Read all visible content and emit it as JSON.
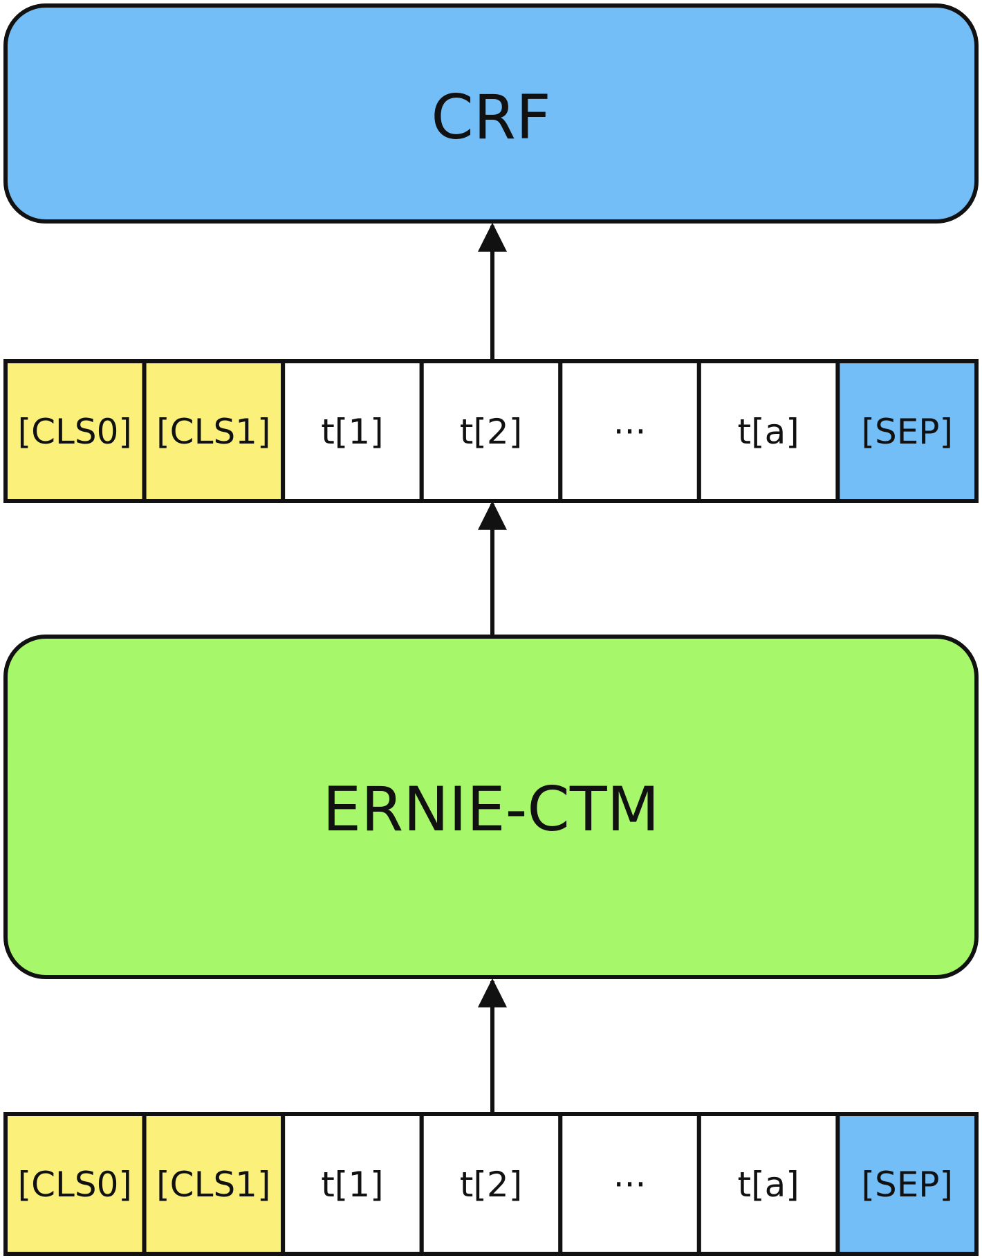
{
  "crf_block": {
    "label": "CRF",
    "color": "#74BEF8"
  },
  "model_block": {
    "label": "ERNIE-CTM",
    "color": "#A7F76B"
  },
  "output_sequence": [
    {
      "label": "[CLS0]",
      "color": "#FAF07A"
    },
    {
      "label": "[CLS1]",
      "color": "#FAF07A"
    },
    {
      "label": "t[1]",
      "color": "#FFFFFF"
    },
    {
      "label": "t[2]",
      "color": "#FFFFFF"
    },
    {
      "label": "···",
      "color": "#FFFFFF"
    },
    {
      "label": "t[a]",
      "color": "#FFFFFF"
    },
    {
      "label": "[SEP]",
      "color": "#74BEF8"
    }
  ],
  "input_sequence": [
    {
      "label": "[CLS0]",
      "color": "#FAF07A"
    },
    {
      "label": "[CLS1]",
      "color": "#FAF07A"
    },
    {
      "label": "t[1]",
      "color": "#FFFFFF"
    },
    {
      "label": "t[2]",
      "color": "#FFFFFF"
    },
    {
      "label": "···",
      "color": "#FFFFFF"
    },
    {
      "label": "t[a]",
      "color": "#FFFFFF"
    },
    {
      "label": "[SEP]",
      "color": "#74BEF8"
    }
  ],
  "arrows": [
    {
      "from": "output_sequence",
      "to": "crf_block"
    },
    {
      "from": "model_block",
      "to": "output_sequence"
    },
    {
      "from": "input_sequence",
      "to": "model_block"
    }
  ]
}
